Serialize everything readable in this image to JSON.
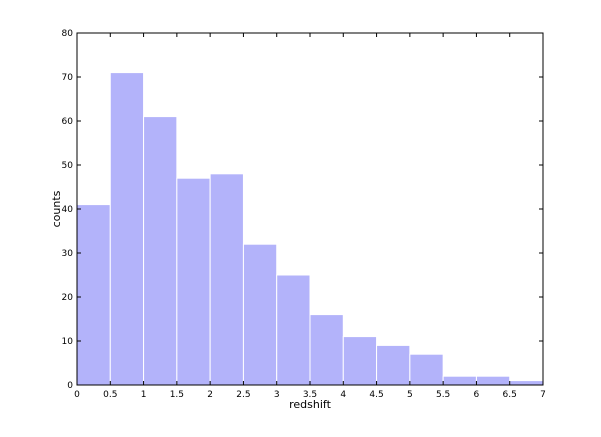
{
  "chart_data": {
    "type": "histogram",
    "xlabel": "redshift",
    "ylabel": "counts",
    "bins": [
      0,
      0.5,
      1,
      1.5,
      2,
      2.5,
      3,
      3.5,
      4,
      4.5,
      5,
      5.5,
      6,
      6.5,
      7
    ],
    "values": [
      41,
      71,
      61,
      47,
      48,
      32,
      25,
      16,
      11,
      9,
      7,
      2,
      2,
      1
    ],
    "color": "#b3b3fa",
    "xlim": [
      0,
      7
    ],
    "xticks": [
      0,
      0.5,
      1,
      1.5,
      2,
      2.5,
      3,
      3.5,
      4,
      4.5,
      5,
      5.5,
      6,
      6.5,
      7
    ],
    "ylim": [
      0,
      80
    ],
    "yticks": [
      0,
      10,
      20,
      30,
      40,
      50,
      60,
      70,
      80
    ],
    "grid": false
  }
}
